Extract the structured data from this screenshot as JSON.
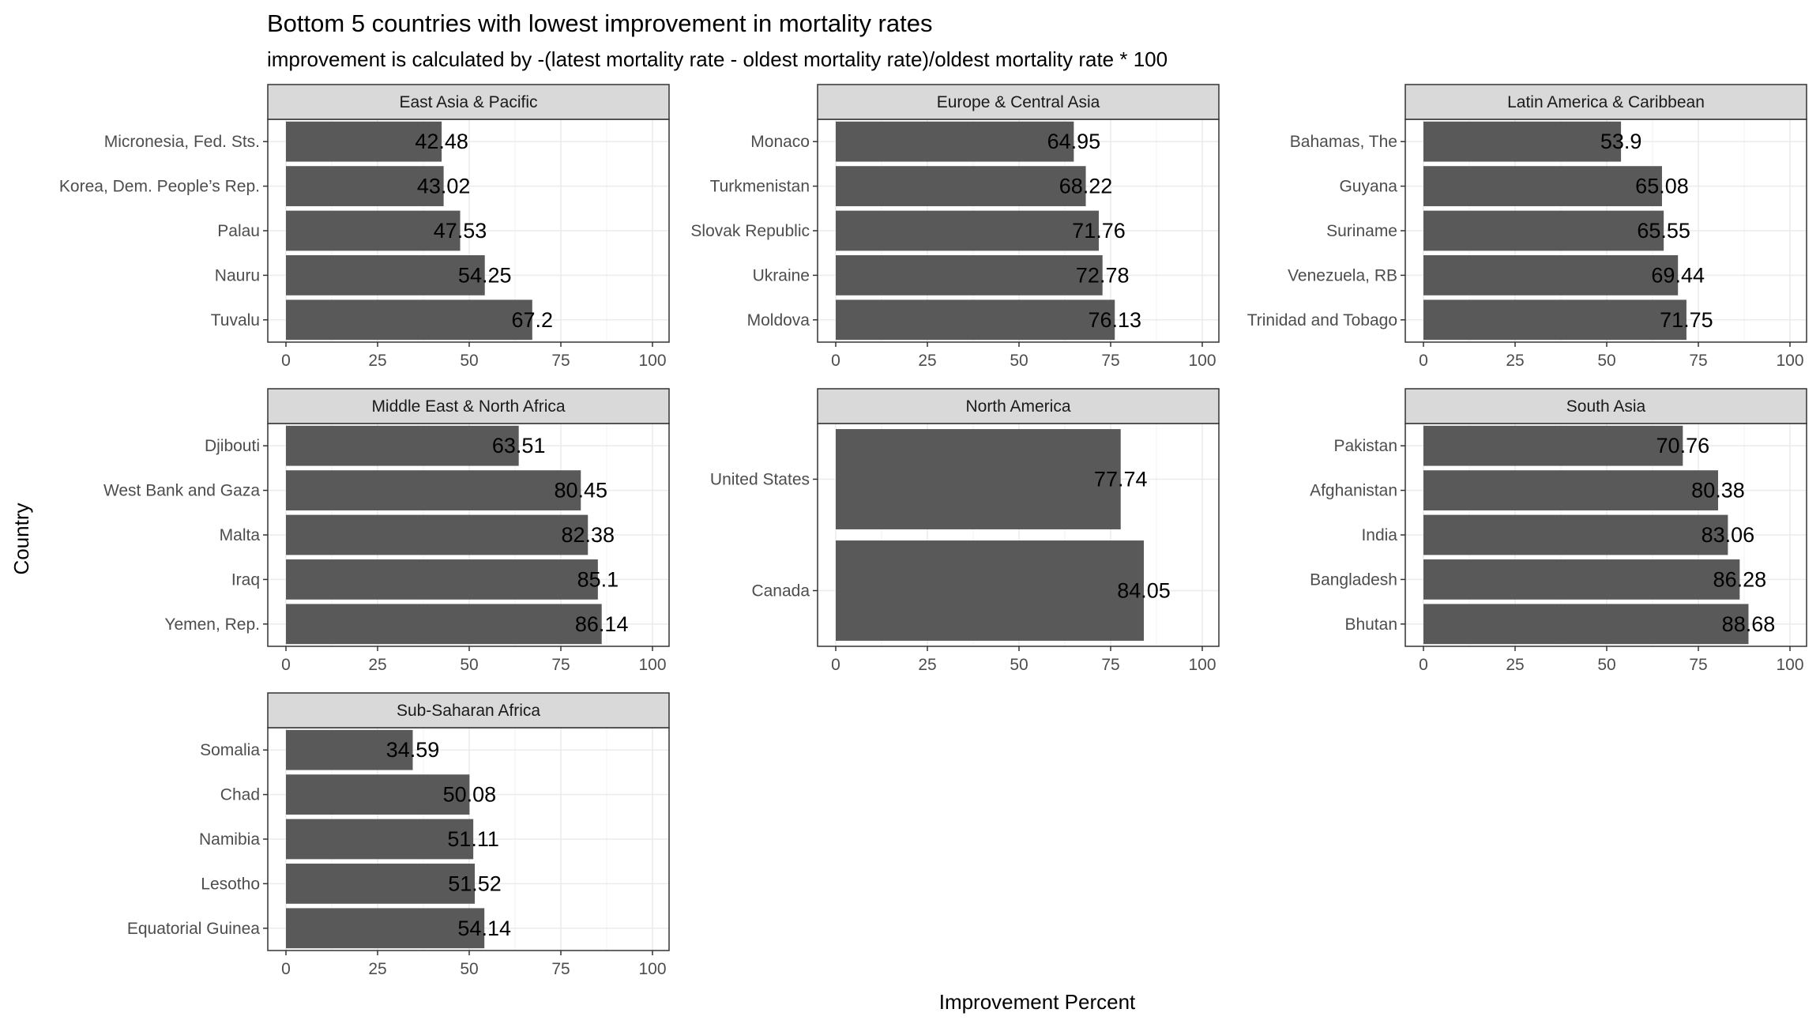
{
  "chart_data": {
    "type": "bar",
    "orientation": "horizontal",
    "title": "Bottom 5 countries with lowest improvement in mortality rates",
    "subtitle": "improvement is calculated by -(latest mortality rate - oldest mortality rate)/oldest mortality rate * 100",
    "xlabel": "Improvement Percent",
    "ylabel": "Country",
    "xlim": [
      0,
      100
    ],
    "x_ticks": [
      "0",
      "25",
      "50",
      "75",
      "100"
    ],
    "grid": true,
    "bar_color": "#595959",
    "strip_color": "#d9d9d9",
    "facets": [
      {
        "region": "East Asia & Pacific",
        "categories": [
          "Micronesia, Fed. Sts.",
          "Korea, Dem. People’s Rep.",
          "Palau",
          "Nauru",
          "Tuvalu"
        ],
        "values": [
          42.48,
          43.02,
          47.53,
          54.25,
          67.2
        ],
        "labels": [
          "42.48",
          "43.02",
          "47.53",
          "54.25",
          "67.2"
        ]
      },
      {
        "region": "Europe & Central Asia",
        "categories": [
          "Monaco",
          "Turkmenistan",
          "Slovak Republic",
          "Ukraine",
          "Moldova"
        ],
        "values": [
          64.95,
          68.22,
          71.76,
          72.78,
          76.13
        ],
        "labels": [
          "64.95",
          "68.22",
          "71.76",
          "72.78",
          "76.13"
        ]
      },
      {
        "region": "Latin America & Caribbean",
        "categories": [
          "Bahamas, The",
          "Guyana",
          "Suriname",
          "Venezuela, RB",
          "Trinidad and Tobago"
        ],
        "values": [
          53.9,
          65.08,
          65.55,
          69.44,
          71.75
        ],
        "labels": [
          "53.9",
          "65.08",
          "65.55",
          "69.44",
          "71.75"
        ]
      },
      {
        "region": "Middle East & North Africa",
        "categories": [
          "Djibouti",
          "West Bank and Gaza",
          "Malta",
          "Iraq",
          "Yemen, Rep."
        ],
        "values": [
          63.51,
          80.45,
          82.38,
          85.1,
          86.14
        ],
        "labels": [
          "63.51",
          "80.45",
          "82.38",
          "85.1",
          "86.14"
        ]
      },
      {
        "region": "North America",
        "categories": [
          "United States",
          "Canada"
        ],
        "values": [
          77.74,
          84.05
        ],
        "labels": [
          "77.74",
          "84.05"
        ]
      },
      {
        "region": "South Asia",
        "categories": [
          "Pakistan",
          "Afghanistan",
          "India",
          "Bangladesh",
          "Bhutan"
        ],
        "values": [
          70.76,
          80.38,
          83.06,
          86.28,
          88.68
        ],
        "labels": [
          "70.76",
          "80.38",
          "83.06",
          "86.28",
          "88.68"
        ]
      },
      {
        "region": "Sub-Saharan Africa",
        "categories": [
          "Somalia",
          "Chad",
          "Namibia",
          "Lesotho",
          "Equatorial Guinea"
        ],
        "values": [
          34.59,
          50.08,
          51.11,
          51.52,
          54.14
        ],
        "labels": [
          "34.59",
          "50.08",
          "51.11",
          "51.52",
          "54.14"
        ]
      }
    ]
  }
}
